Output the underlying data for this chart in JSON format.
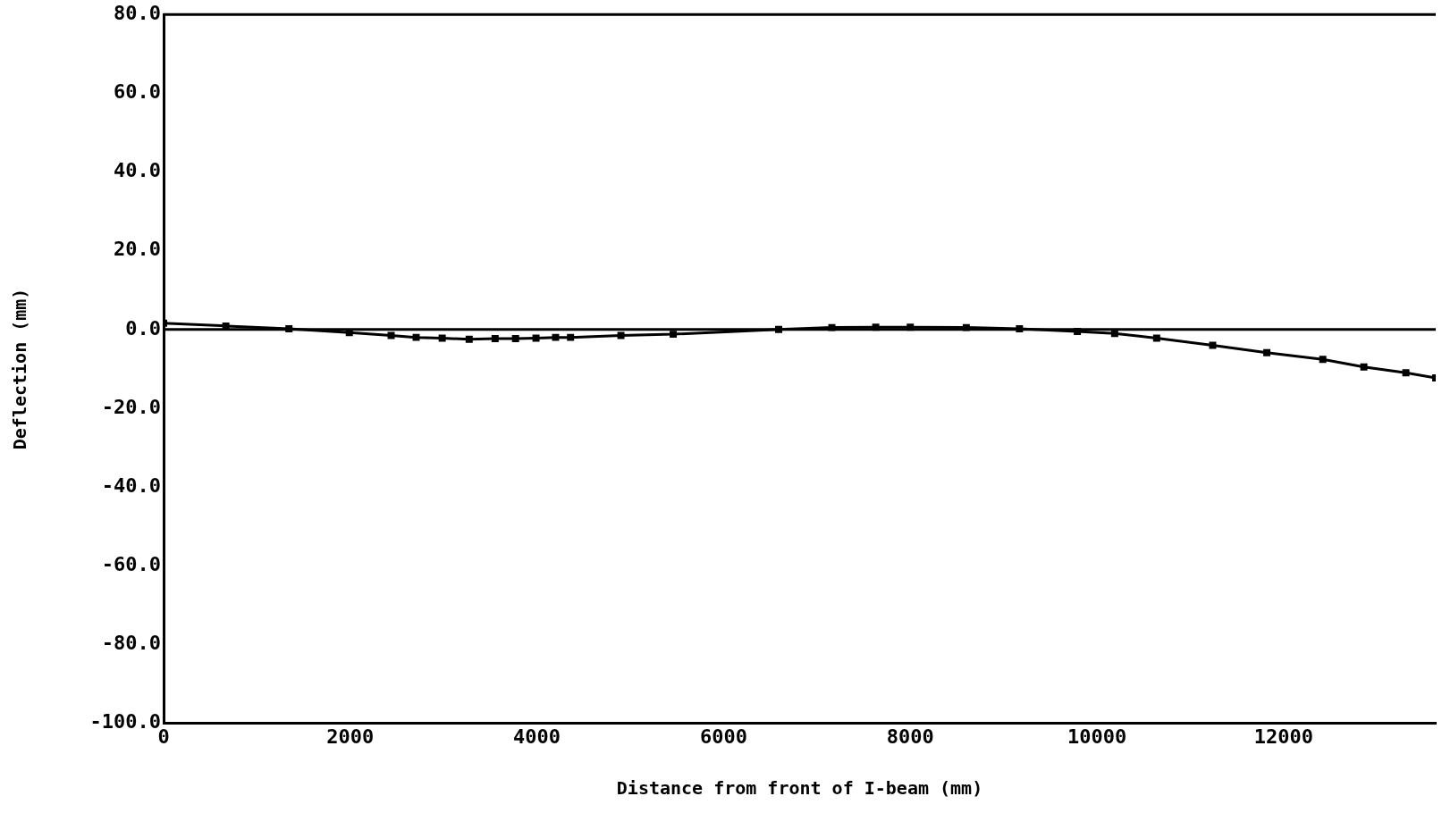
{
  "chart_data": {
    "type": "line",
    "xlabel": "Distance from front of I-beam (mm)",
    "ylabel": "Deflection (mm)",
    "x": [
      0,
      667,
      1343,
      1990,
      2438,
      2706,
      2985,
      3274,
      3552,
      3771,
      3990,
      4200,
      4360,
      4900,
      5460,
      6590,
      7160,
      7630,
      8000,
      8600,
      9170,
      9790,
      10190,
      10640,
      11240,
      11820,
      12420,
      12860,
      13310,
      13630
    ],
    "series": [
      {
        "color": "#000000",
        "values": [
          1.6,
          0.9,
          0.2,
          -0.8,
          -1.5,
          -2.0,
          -2.2,
          -2.5,
          -2.3,
          -2.3,
          -2.2,
          -2.0,
          -2.0,
          -1.5,
          -1.2,
          0.0,
          0.5,
          0.6,
          0.6,
          0.5,
          0.2,
          -0.5,
          -1.0,
          -2.2,
          -4.0,
          -5.9,
          -7.6,
          -9.5,
          -11.0,
          -12.3
        ]
      }
    ],
    "xlim": [
      0,
      13630
    ],
    "xticks": [
      0,
      2000,
      4000,
      6000,
      8000,
      10000,
      12000
    ],
    "ylim": [
      -100,
      80
    ],
    "yticks": [
      {
        "value": -100,
        "label": "-100.0"
      },
      {
        "value": -80,
        "label": "-80.0"
      },
      {
        "value": -60,
        "label": "-60.0"
      },
      {
        "value": -40,
        "label": "-40.0"
      },
      {
        "value": -20,
        "label": "-20.0"
      },
      {
        "value": 0,
        "label": "0.0"
      },
      {
        "value": 20,
        "label": "20.0"
      },
      {
        "value": 40,
        "label": "40.0"
      },
      {
        "value": 60,
        "label": "60.0"
      },
      {
        "value": 80,
        "label": "80.0"
      }
    ],
    "ref_lines": [
      {
        "axis": "y",
        "value": 0,
        "color": "#000000"
      }
    ],
    "marker": "square",
    "line_style": "solid",
    "grid": false,
    "legend": false
  }
}
